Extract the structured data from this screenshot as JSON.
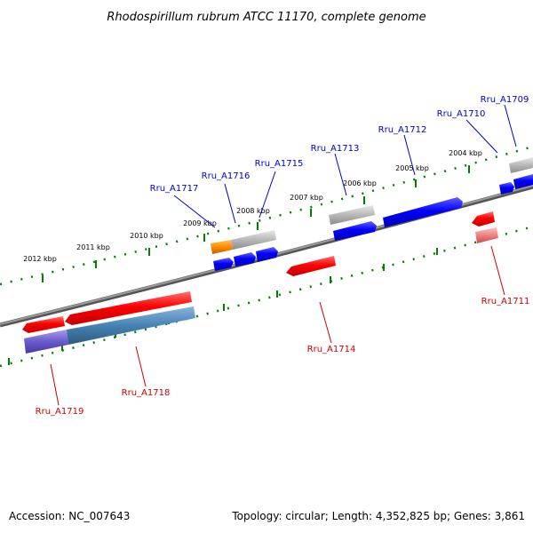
{
  "title": "Rhodospirillum rubrum ATCC 11170, complete genome",
  "kbp_labels": [
    "2004 kbp",
    "2005 kbp",
    "2006 kbp",
    "2007 kbp",
    "2008 kbp",
    "2009 kbp",
    "2010 kbp",
    "2011 kbp",
    "2012 kbp"
  ],
  "genes_top": [
    {
      "label": "Rru_A1709",
      "color": "#0000cc"
    },
    {
      "label": "Rru_A1710",
      "color": "#0000cc"
    },
    {
      "label": "Rru_A1712",
      "color": "#0000cc"
    },
    {
      "label": "Rru_A1713",
      "color": "#0000cc"
    },
    {
      "label": "Rru_A1715",
      "color": "#0000cc"
    },
    {
      "label": "Rru_A1716",
      "color": "#0000cc"
    },
    {
      "label": "Rru_A1717",
      "color": "#0000cc"
    }
  ],
  "genes_bottom": [
    {
      "label": "Rru_A1711",
      "color": "#cc0000"
    },
    {
      "label": "Rru_A1714",
      "color": "#cc0000"
    },
    {
      "label": "Rru_A1718",
      "color": "#cc0000"
    },
    {
      "label": "Rru_A1719",
      "color": "#cc0000"
    }
  ],
  "colors": {
    "backbone": "#808080",
    "ticks": "#008000",
    "forward_cds": "#0000ff",
    "reverse_cds": "#ff0000",
    "pseudo": "#b0b0b0",
    "orange": "#ff8c00",
    "steelblue": "#4682b4",
    "purple": "#6a5acd",
    "pink": "#f08080"
  },
  "footer": {
    "accession": "Accession: NC_007643",
    "topology": "Topology: circular; Length: 4,352,825 bp; Genes: 3,861"
  }
}
